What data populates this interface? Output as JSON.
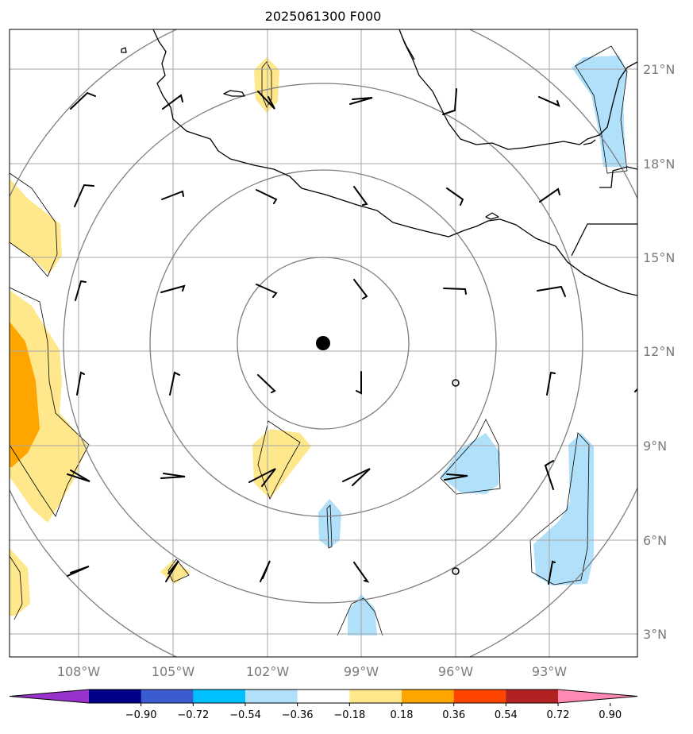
{
  "title": "2025061300 F000",
  "map": {
    "lon_labels": [
      "108°W",
      "105°W",
      "102°W",
      "99°W",
      "96°W",
      "93°W"
    ],
    "lat_labels": [
      "21°N",
      "18°N",
      "15°N",
      "12°N",
      "9°N",
      "6°N",
      "3°N"
    ],
    "center_marker": {
      "lon": -100.2,
      "lat": 12.2
    },
    "range_rings": 4,
    "gridlines": true,
    "coastline_color": "#000000",
    "ring_color": "#7f7f7f",
    "grid_color": "#a6a6a6",
    "calm_markers": 2
  },
  "colorbar": {
    "extend": "both",
    "tick_labels": [
      "−0.90",
      "−0.72",
      "−0.54",
      "−0.36",
      "−0.18",
      "0.18",
      "0.36",
      "0.54",
      "0.72",
      "0.90"
    ],
    "colors": [
      "#9932cc",
      "#00008b",
      "#3b5bd0",
      "#00bfff",
      "#b0e0fa",
      "#ffffff",
      "#ffe78c",
      "#ffa500",
      "#ff4500",
      "#b22222",
      "#ff88b4"
    ]
  }
}
